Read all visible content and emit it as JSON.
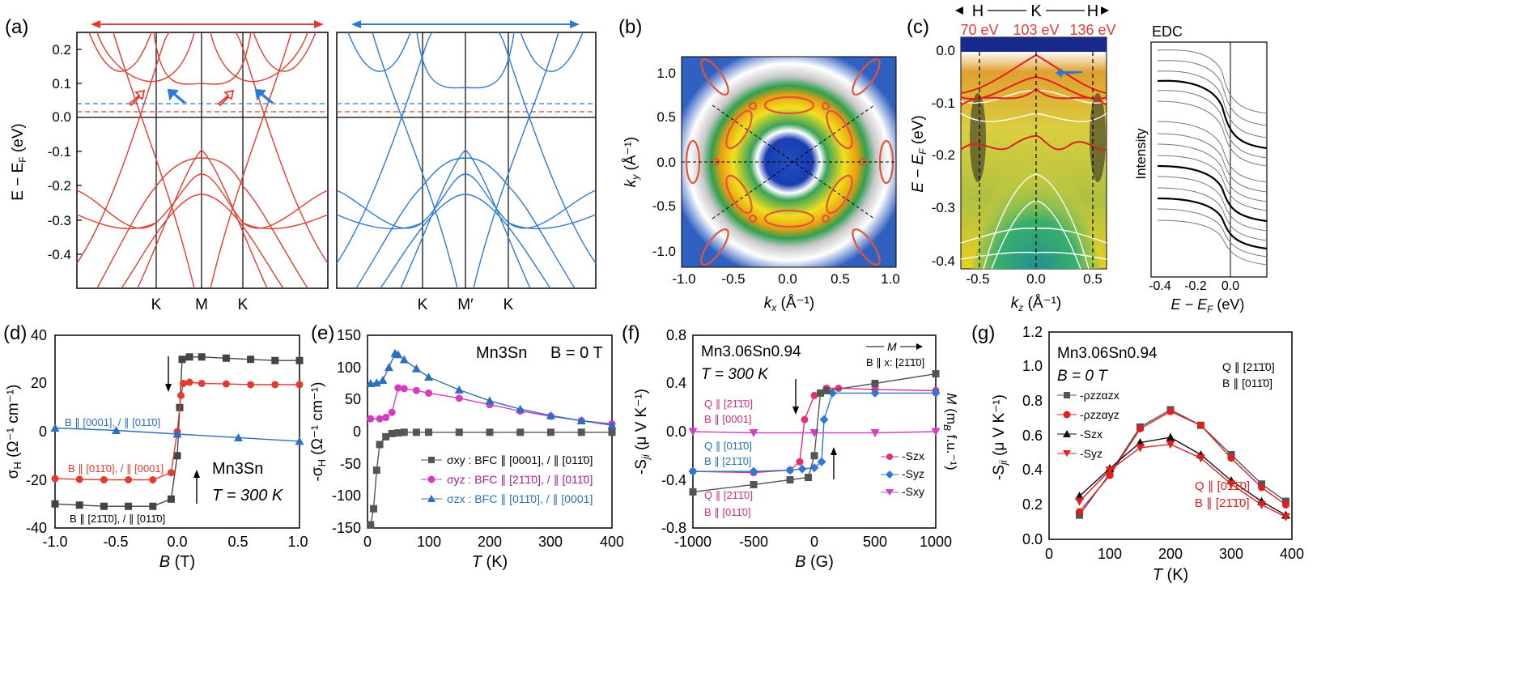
{
  "panels": {
    "a": {
      "label": "(a)",
      "ylabel": "E − E_F (eV)",
      "yticks": [
        "0.2",
        "0.1",
        "0.0",
        "-0.1",
        "-0.2",
        "-0.3",
        "-0.4"
      ],
      "left_xticks": [
        "K",
        "M",
        "K"
      ],
      "right_xticks": [
        "K",
        "M′",
        "K"
      ]
    },
    "b": {
      "label": "(b)",
      "xlabel": "k_x (Å⁻¹)",
      "ylabel": "k_y (Å⁻¹)",
      "xticks": [
        "-1.0",
        "-0.5",
        "0.0",
        "0.5",
        "1.0"
      ],
      "yticks": [
        "1.0",
        "0.5",
        "0.0",
        "-0.5",
        "-1.0"
      ]
    },
    "c": {
      "label": "(c)",
      "path": [
        "H",
        "K",
        "H"
      ],
      "photon_energies": [
        "70 eV",
        "103 eV",
        "136 eV"
      ],
      "ylabel": "E − E_F (eV)",
      "yticks": [
        "0.0",
        "-0.1",
        "-0.2",
        "-0.3",
        "-0.4"
      ],
      "xticks": [
        "-0.5",
        "0.0",
        "0.5"
      ],
      "xlabel": "k_z (Å⁻¹)",
      "edc_title": "EDC",
      "edc_ylabel": "Intensity",
      "edc_xticks": [
        "-0.4",
        "-0.2",
        "0.0"
      ],
      "edc_xlabel": "E − E_F (eV)"
    },
    "d": {
      "label": "(d)",
      "ylabel": "σ_H (Ω⁻¹ cm⁻¹)",
      "xlabel": "B (T)",
      "xticks": [
        "-1.0",
        "-0.5",
        "0.0",
        "0.5",
        "1.0"
      ],
      "yticks": [
        "40",
        "20",
        "0",
        "-20",
        "-40"
      ],
      "material": "Mn3Sn",
      "temp": "T = 300 K",
      "series_labels": [
        "B ∥ [0001], / ∥ [011̄0]",
        "B ∥ [011̄0], / ∥ [0001]",
        "B ∥ [21̄1̄0], / ∥ [011̄0]"
      ]
    },
    "e": {
      "label": "(e)",
      "ylabel": "-σ_H (Ω⁻¹ cm⁻¹)",
      "xlabel": "T (K)",
      "xticks": [
        "0",
        "100",
        "200",
        "300",
        "400"
      ],
      "yticks": [
        "150",
        "100",
        "50",
        "0",
        "-50",
        "-100",
        "-150"
      ],
      "material": "Mn3Sn",
      "field": "B = 0 T",
      "legend": [
        "σxy : BFC ∥ [0001], / ∥ [011̄0]",
        "σyz : BFC ∥ [21̄1̄0], / ∥ [011̄0]",
        "σzx : BFC ∥ [011̄0], / ∥ [0001]"
      ]
    },
    "f": {
      "label": "(f)",
      "ylabel": "-S_ji (μ V K⁻¹)",
      "ylabel_right": "M (m_B f.u.⁻¹)",
      "xlabel": "B (G)",
      "xticks": [
        "-1000",
        "-500",
        "0",
        "500",
        "1000"
      ],
      "yticks": [
        "0.8",
        "0.4",
        "0.0",
        "-0.4",
        "-0.8"
      ],
      "material": "Mn3.06Sn0.94",
      "temp": "T = 300 K",
      "m_label": "M",
      "b_label": "B ∥ x: [21̄1̄0]",
      "annot": [
        "Q ∥ [21̄1̄0]",
        "B ∥ [0001]",
        "Q ∥ [011̄0]",
        "B ∥ [21̄1̄0]",
        "Q ∥ [21̄1̄0]",
        "B ∥ [011̄0]"
      ],
      "legend": [
        "-Szx",
        "-Syz",
        "-Sxy"
      ]
    },
    "g": {
      "label": "(g)",
      "ylabel": "-S_ji (μ V K⁻¹)",
      "xlabel": "T (K)",
      "xticks": [
        "0",
        "100",
        "200",
        "300",
        "400"
      ],
      "yticks": [
        "1.2",
        "1.0",
        "0.8",
        "0.6",
        "0.4",
        "0.2",
        "0.0"
      ],
      "material": "Mn3.06Sn0.94",
      "field": "B = 0 T",
      "q_top": "Q ∥ [21̄1̄0]",
      "b_top": "B ∥ [011̄0]",
      "q_bot": "Q ∥ [011̄0]",
      "b_bot": "B ∥ [21̄1̄0]",
      "legend": [
        "-ρzzαzx",
        "-ρzzαyz",
        "-Szx",
        "-Syz"
      ]
    }
  },
  "chart_data": [
    {
      "type": "line",
      "panel": "d",
      "xlabel": "B (T)",
      "ylabel": "σH (Ω⁻¹ cm⁻¹)",
      "xlim": [
        -1.0,
        1.0
      ],
      "ylim": [
        -40,
        40
      ],
      "series": [
        {
          "name": "B ∥ [21̄1̄0], / ∥ [011̄0]",
          "color": "#444444",
          "x": [
            -1.0,
            -0.8,
            -0.6,
            -0.4,
            -0.2,
            -0.05,
            0.0,
            0.02,
            0.04,
            0.1,
            0.2,
            0.4,
            0.6,
            0.8,
            1.0
          ],
          "y": [
            -30,
            -30.5,
            -31,
            -31,
            -31,
            -28,
            -10,
            10,
            30,
            31,
            31,
            30.5,
            30,
            29.5,
            29.5
          ]
        },
        {
          "name": "B ∥ [011̄0], / ∥ [0001]",
          "color": "#e03c31",
          "x": [
            -1.0,
            -0.8,
            -0.6,
            -0.4,
            -0.2,
            -0.05,
            0.0,
            0.03,
            0.05,
            0.1,
            0.2,
            0.4,
            0.6,
            0.8,
            1.0
          ],
          "y": [
            -19.5,
            -19.8,
            -20,
            -20,
            -20,
            -17,
            0,
            15,
            20,
            20.5,
            20,
            19.8,
            19.5,
            19.5,
            19.5
          ]
        },
        {
          "name": "B ∥ [0001], / ∥ [01 1̄0]",
          "color": "#2c6fbf",
          "x": [
            -1.0,
            -0.5,
            0.0,
            0.5,
            1.0
          ],
          "y": [
            1.5,
            0.5,
            -1,
            -2.5,
            -4
          ]
        }
      ]
    },
    {
      "type": "line",
      "panel": "e",
      "xlabel": "T (K)",
      "ylabel": "-σH (Ω⁻¹ cm⁻¹)",
      "xlim": [
        0,
        400
      ],
      "ylim": [
        -150,
        150
      ],
      "series": [
        {
          "name": "σxy",
          "color": "#555555",
          "x": [
            5,
            10,
            15,
            20,
            30,
            40,
            50,
            60,
            80,
            100,
            150,
            200,
            250,
            300,
            350,
            400
          ],
          "y": [
            -145,
            -120,
            -60,
            -20,
            -8,
            -3,
            -2,
            -1,
            -1,
            -1,
            -1,
            -1,
            -1,
            -1,
            -1,
            -1
          ]
        },
        {
          "name": "σyz",
          "color": "#d63cc0",
          "x": [
            5,
            20,
            30,
            40,
            50,
            60,
            80,
            100,
            150,
            200,
            250,
            300,
            350,
            400
          ],
          "y": [
            20,
            20,
            22,
            30,
            68,
            67,
            64,
            60,
            52,
            42,
            32,
            24,
            17,
            12
          ]
        },
        {
          "name": "σzx",
          "color": "#2c6fbf",
          "x": [
            5,
            15,
            25,
            35,
            45,
            50,
            60,
            80,
            100,
            150,
            200,
            250,
            300,
            350,
            400
          ],
          "y": [
            75,
            76,
            80,
            100,
            122,
            120,
            112,
            98,
            85,
            65,
            48,
            35,
            25,
            17,
            10
          ]
        }
      ]
    },
    {
      "type": "line",
      "panel": "f",
      "xlabel": "B (G)",
      "ylabel": "-Sji (μ V K⁻¹)",
      "xlim": [
        -1000,
        1000
      ],
      "ylim": [
        -0.8,
        0.8
      ],
      "series": [
        {
          "name": "-Szx",
          "color": "#e0307a",
          "x": [
            -1000,
            -500,
            -200,
            -120,
            -80,
            0,
            100,
            200,
            500,
            1000
          ],
          "y": [
            -0.33,
            -0.34,
            -0.32,
            -0.25,
            0.1,
            0.3,
            0.36,
            0.36,
            0.35,
            0.34
          ]
        },
        {
          "name": "-Syz",
          "color": "#2c7ad6",
          "x": [
            -1000,
            -500,
            -200,
            -100,
            0,
            60,
            80,
            150,
            500,
            1000
          ],
          "y": [
            -0.33,
            -0.33,
            -0.32,
            -0.31,
            -0.3,
            -0.25,
            0.1,
            0.32,
            0.32,
            0.32
          ]
        },
        {
          "name": "-Sxy",
          "color": "#d040c8",
          "x": [
            -1000,
            -500,
            0,
            500,
            1000
          ],
          "y": [
            0.0,
            -0.01,
            -0.01,
            -0.01,
            0.0
          ]
        },
        {
          "name": "M",
          "color": "#555555",
          "x": [
            -1000,
            -500,
            -200,
            -50,
            0,
            50,
            100,
            500,
            1000
          ],
          "y": [
            -0.5,
            -0.44,
            -0.4,
            -0.38,
            -0.2,
            0.32,
            0.34,
            0.4,
            0.48
          ]
        }
      ]
    },
    {
      "type": "line",
      "panel": "g",
      "xlabel": "T (K)",
      "ylabel": "-Sji (μ V K⁻¹)",
      "xlim": [
        0,
        400
      ],
      "ylim": [
        0.0,
        1.2
      ],
      "series": [
        {
          "name": "-ρzzαzx",
          "color": "#555555",
          "x": [
            50,
            100,
            150,
            200,
            250,
            300,
            350,
            390
          ],
          "y": [
            0.14,
            0.38,
            0.65,
            0.75,
            0.66,
            0.49,
            0.32,
            0.22
          ]
        },
        {
          "name": "-ρzzαyz",
          "color": "#e02020",
          "x": [
            50,
            100,
            150,
            200,
            250,
            300,
            350,
            390
          ],
          "y": [
            0.16,
            0.37,
            0.64,
            0.74,
            0.66,
            0.47,
            0.3,
            0.2
          ]
        },
        {
          "name": "-Szx",
          "color": "#111111",
          "x": [
            50,
            100,
            150,
            200,
            250,
            300,
            350,
            390
          ],
          "y": [
            0.25,
            0.41,
            0.56,
            0.59,
            0.49,
            0.34,
            0.22,
            0.14
          ]
        },
        {
          "name": "-Syz",
          "color": "#e02020",
          "x": [
            50,
            100,
            150,
            200,
            250,
            300,
            350,
            390
          ],
          "y": [
            0.22,
            0.4,
            0.53,
            0.55,
            0.47,
            0.32,
            0.2,
            0.13
          ]
        }
      ]
    }
  ]
}
